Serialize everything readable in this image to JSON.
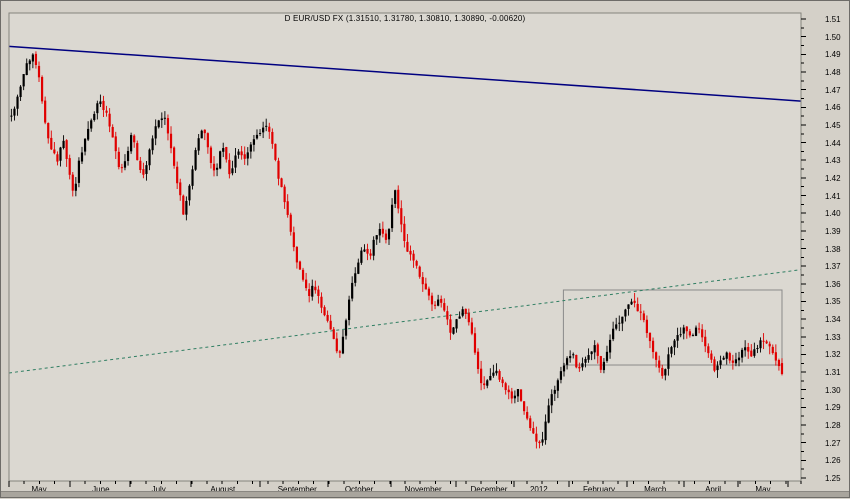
{
  "window": {
    "app": "chart-window"
  },
  "chart_data": {
    "type": "candlestick",
    "title": "D EUR/USD FX (1.31510, 1.31780, 1.30810, 1.30890, -0.00620)",
    "symbol": "EUR/USD FX",
    "periodicity": "D",
    "last_ohlc": {
      "open": 1.3151,
      "high": 1.3178,
      "low": 1.3081,
      "close": 1.3089,
      "change": -0.0062
    },
    "y_axis": {
      "min": 1.25,
      "max": 1.51,
      "step": 0.01,
      "decimals": 2
    },
    "x_axis": {
      "months": [
        {
          "label": "May",
          "f": 0.038
        },
        {
          "label": "June",
          "f": 0.116
        },
        {
          "label": "July",
          "f": 0.189
        },
        {
          "label": "August",
          "f": 0.27
        },
        {
          "label": "September",
          "f": 0.364
        },
        {
          "label": "October",
          "f": 0.442
        },
        {
          "label": "November",
          "f": 0.523
        },
        {
          "label": "December",
          "f": 0.606
        },
        {
          "label": "2012",
          "f": 0.669
        },
        {
          "label": "February",
          "f": 0.745
        },
        {
          "label": "March",
          "f": 0.816
        },
        {
          "label": "April",
          "f": 0.889
        },
        {
          "label": "May",
          "f": 0.952
        }
      ],
      "weekly_tick_count": 52
    },
    "price_path": [
      [
        0.003,
        1.455
      ],
      [
        0.013,
        1.468
      ],
      [
        0.021,
        1.483
      ],
      [
        0.03,
        1.49
      ],
      [
        0.038,
        1.478
      ],
      [
        0.045,
        1.452
      ],
      [
        0.053,
        1.436
      ],
      [
        0.061,
        1.43
      ],
      [
        0.068,
        1.442
      ],
      [
        0.076,
        1.423
      ],
      [
        0.082,
        1.41
      ],
      [
        0.088,
        1.428
      ],
      [
        0.097,
        1.443
      ],
      [
        0.106,
        1.455
      ],
      [
        0.114,
        1.465
      ],
      [
        0.124,
        1.455
      ],
      [
        0.133,
        1.44
      ],
      [
        0.14,
        1.424
      ],
      [
        0.149,
        1.432
      ],
      [
        0.155,
        1.447
      ],
      [
        0.163,
        1.428
      ],
      [
        0.169,
        1.42
      ],
      [
        0.178,
        1.436
      ],
      [
        0.187,
        1.451
      ],
      [
        0.196,
        1.455
      ],
      [
        0.203,
        1.44
      ],
      [
        0.212,
        1.419
      ],
      [
        0.22,
        1.4
      ],
      [
        0.229,
        1.417
      ],
      [
        0.237,
        1.44
      ],
      [
        0.246,
        1.449
      ],
      [
        0.254,
        1.431
      ],
      [
        0.261,
        1.421
      ],
      [
        0.269,
        1.441
      ],
      [
        0.279,
        1.421
      ],
      [
        0.288,
        1.436
      ],
      [
        0.297,
        1.43
      ],
      [
        0.307,
        1.441
      ],
      [
        0.317,
        1.446
      ],
      [
        0.326,
        1.451
      ],
      [
        0.332,
        1.44
      ],
      [
        0.34,
        1.421
      ],
      [
        0.347,
        1.409
      ],
      [
        0.356,
        1.39
      ],
      [
        0.364,
        1.371
      ],
      [
        0.371,
        1.364
      ],
      [
        0.378,
        1.351
      ],
      [
        0.384,
        1.361
      ],
      [
        0.393,
        1.349
      ],
      [
        0.402,
        1.339
      ],
      [
        0.409,
        1.329
      ],
      [
        0.417,
        1.318
      ],
      [
        0.424,
        1.336
      ],
      [
        0.433,
        1.361
      ],
      [
        0.441,
        1.372
      ],
      [
        0.447,
        1.381
      ],
      [
        0.455,
        1.374
      ],
      [
        0.461,
        1.386
      ],
      [
        0.468,
        1.392
      ],
      [
        0.476,
        1.386
      ],
      [
        0.482,
        1.394
      ],
      [
        0.486,
        1.419
      ],
      [
        0.492,
        1.401
      ],
      [
        0.5,
        1.381
      ],
      [
        0.508,
        1.376
      ],
      [
        0.514,
        1.371
      ],
      [
        0.52,
        1.361
      ],
      [
        0.528,
        1.356
      ],
      [
        0.535,
        1.346
      ],
      [
        0.544,
        1.351
      ],
      [
        0.552,
        1.341
      ],
      [
        0.558,
        1.331
      ],
      [
        0.567,
        1.341
      ],
      [
        0.573,
        1.346
      ],
      [
        0.58,
        1.339
      ],
      [
        0.586,
        1.329
      ],
      [
        0.592,
        1.311
      ],
      [
        0.598,
        1.301
      ],
      [
        0.607,
        1.306
      ],
      [
        0.614,
        1.311
      ],
      [
        0.621,
        1.304
      ],
      [
        0.629,
        1.299
      ],
      [
        0.636,
        1.294
      ],
      [
        0.643,
        1.301
      ],
      [
        0.649,
        1.289
      ],
      [
        0.658,
        1.279
      ],
      [
        0.665,
        1.272
      ],
      [
        0.672,
        1.267
      ],
      [
        0.677,
        1.281
      ],
      [
        0.683,
        1.296
      ],
      [
        0.691,
        1.301
      ],
      [
        0.697,
        1.311
      ],
      [
        0.703,
        1.316
      ],
      [
        0.712,
        1.321
      ],
      [
        0.718,
        1.311
      ],
      [
        0.725,
        1.316
      ],
      [
        0.733,
        1.321
      ],
      [
        0.741,
        1.326
      ],
      [
        0.747,
        1.311
      ],
      [
        0.754,
        1.321
      ],
      [
        0.76,
        1.331
      ],
      [
        0.766,
        1.336
      ],
      [
        0.773,
        1.341
      ],
      [
        0.781,
        1.347
      ],
      [
        0.788,
        1.352
      ],
      [
        0.794,
        1.345
      ],
      [
        0.8,
        1.341
      ],
      [
        0.807,
        1.331
      ],
      [
        0.813,
        1.321
      ],
      [
        0.819,
        1.316
      ],
      [
        0.826,
        1.306
      ],
      [
        0.832,
        1.319
      ],
      [
        0.838,
        1.326
      ],
      [
        0.846,
        1.331
      ],
      [
        0.853,
        1.336
      ],
      [
        0.861,
        1.329
      ],
      [
        0.869,
        1.336
      ],
      [
        0.876,
        1.329
      ],
      [
        0.884,
        1.319
      ],
      [
        0.891,
        1.311
      ],
      [
        0.899,
        1.316
      ],
      [
        0.906,
        1.321
      ],
      [
        0.914,
        1.314
      ],
      [
        0.922,
        1.319
      ],
      [
        0.929,
        1.324
      ],
      [
        0.937,
        1.319
      ],
      [
        0.944,
        1.324
      ],
      [
        0.952,
        1.329
      ],
      [
        0.96,
        1.324
      ],
      [
        0.966,
        1.319
      ],
      [
        0.971,
        1.3151
      ],
      [
        0.976,
        1.3089
      ]
    ],
    "candle_count": 252,
    "seed": 42,
    "wick_scale": 0.0045,
    "noise_scale": 0.0013,
    "trendlines": [
      {
        "name": "descending-resistance",
        "style": "solid",
        "color_key": "trend_resistance",
        "from": {
          "f": 0,
          "price": 1.4945
        },
        "to": {
          "f": 1,
          "price": 1.4635
        },
        "width": 1.5
      },
      {
        "name": "ascending-support",
        "style": "dashed",
        "color_key": "trend_support",
        "from": {
          "f": 0,
          "price": 1.3095
        },
        "to": {
          "f": 1,
          "price": 1.368
        },
        "width": 1
      }
    ],
    "rectangle": {
      "f1": 0.7,
      "f2": 0.976,
      "top": 1.3565,
      "bottom": 1.314
    },
    "colors": {
      "up": "#000000",
      "down": "#e00000",
      "trend_resistance": "#000080",
      "trend_support": "#2f7e62",
      "rectangle": "#8a8a8a",
      "plot_bg": "#dbd8d1",
      "frame_bg": "#d4d0c8",
      "axis_text": "#000000",
      "plot_border": "#85837d"
    }
  }
}
